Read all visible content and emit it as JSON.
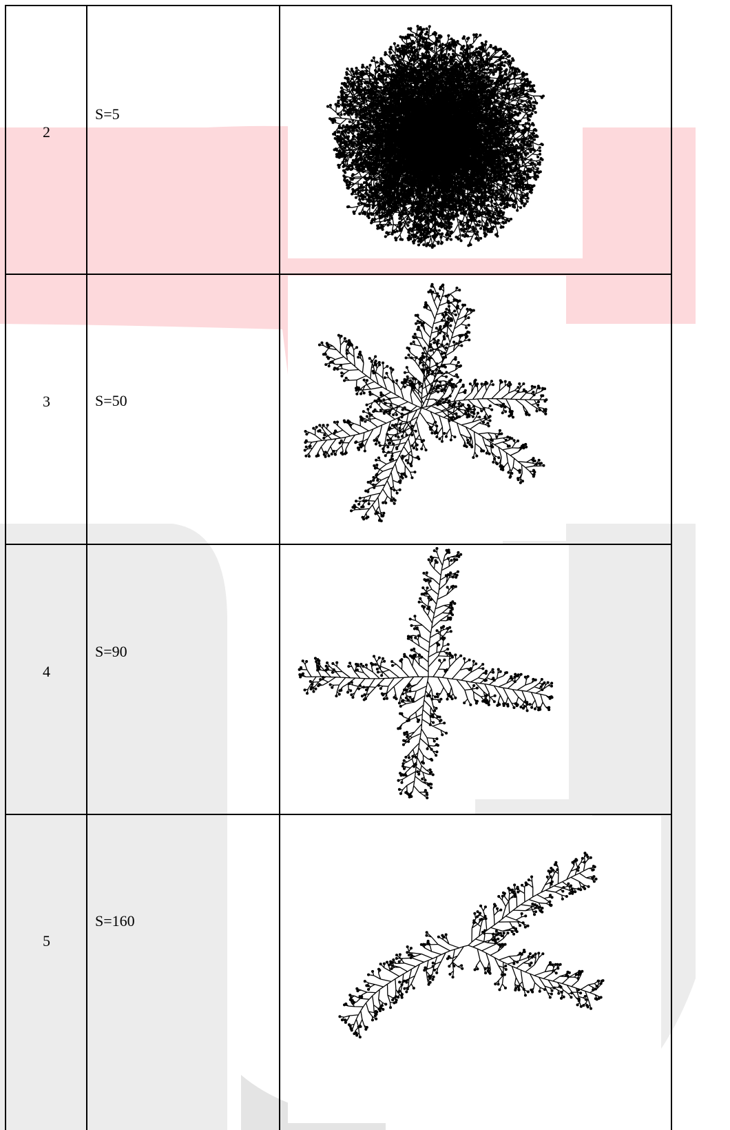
{
  "table": {
    "rows": [
      [
        "2",
        "S=5"
      ],
      [
        "3",
        "S=50"
      ],
      [
        "4",
        "S=90"
      ],
      [
        "5",
        "S=160"
      ]
    ]
  }
}
